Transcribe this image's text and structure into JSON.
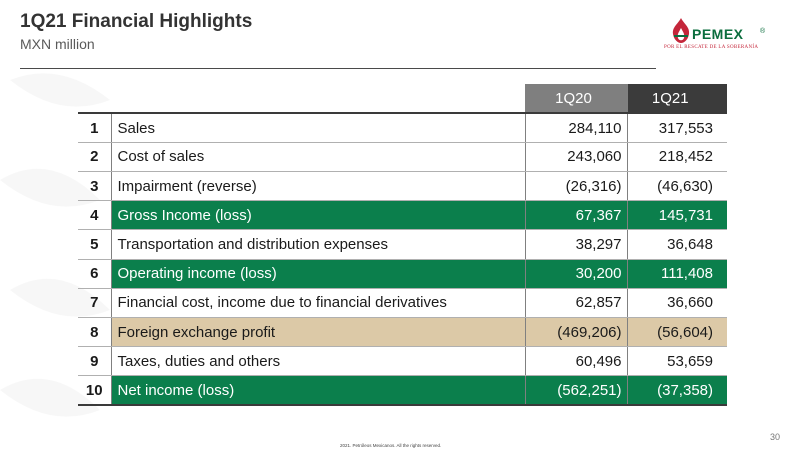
{
  "header": {
    "title": "1Q21 Financial Highlights",
    "subtitle": "MXN million"
  },
  "logo": {
    "wordmark": "PEMEX",
    "registered": "®",
    "tagline": "POR EL RESCATE DE LA SOBERANÍA"
  },
  "table": {
    "columns": [
      "1Q20",
      "1Q21"
    ],
    "rows": [
      {
        "num": "1",
        "label": "Sales",
        "q20": "284,110",
        "q21": "317,553",
        "style": "plain"
      },
      {
        "num": "2",
        "label": "Cost of sales",
        "q20": "243,060",
        "q21": "218,452",
        "style": "plain"
      },
      {
        "num": "3",
        "label": "Impairment  (reverse)",
        "q20": "(26,316)",
        "q21": "(46,630)",
        "style": "plain"
      },
      {
        "num": "4",
        "label": "Gross Income (loss)",
        "q20": "67,367",
        "q21": "145,731",
        "style": "green"
      },
      {
        "num": "5",
        "label": "Transportation and distribution expenses",
        "q20": "38,297",
        "q21": "36,648",
        "style": "plain"
      },
      {
        "num": "6",
        "label": "Operating income (loss)",
        "q20": "30,200",
        "q21": "111,408",
        "style": "green"
      },
      {
        "num": "7",
        "label": "Financial cost, income due to financial derivatives",
        "q20": "62,857",
        "q21": "36,660",
        "style": "plain"
      },
      {
        "num": "8",
        "label": "Foreign exchange profit",
        "q20": "(469,206)",
        "q21": "(56,604)",
        "style": "tan"
      },
      {
        "num": "9",
        "label": "Taxes, duties and others",
        "q20": "60,496",
        "q21": "53,659",
        "style": "plain"
      },
      {
        "num": "10",
        "label": "Net income (loss)",
        "q20": "(562,251)",
        "q21": "(37,358)",
        "style": "green"
      }
    ]
  },
  "footer": {
    "copyright": "2021. Petróleos Mexicanos.  All the rights reserved.",
    "page_number": "30"
  },
  "colors": {
    "green_highlight": "#0b7f4c",
    "tan_highlight": "#dcc9a7",
    "header_1q20": "#7f7f7f",
    "header_1q21": "#3b3b3b",
    "brand_green": "#0b6e3e",
    "brand_red": "#c4263a"
  }
}
